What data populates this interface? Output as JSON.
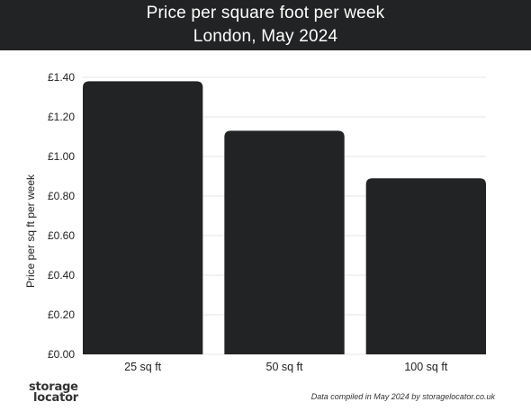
{
  "header": {
    "title": "Price per square foot per week",
    "subtitle": "London, May 2024"
  },
  "chart_data": {
    "type": "bar",
    "title": "Price per square foot per week",
    "subtitle": "London, May 2024",
    "categories": [
      "25 sq ft",
      "50 sq ft",
      "100 sq ft"
    ],
    "values": [
      1.38,
      1.13,
      0.89
    ],
    "xlabel": "",
    "ylabel": "Price per sq ft per week",
    "ylim": [
      0,
      1.4
    ],
    "yticks": [
      0,
      0.2,
      0.4,
      0.6,
      0.8,
      1.0,
      1.2,
      1.4
    ],
    "ytick_labels": [
      "£0.00",
      "£0.20",
      "£0.40",
      "£0.60",
      "£0.80",
      "£1.00",
      "£1.20",
      "£1.40"
    ],
    "grid": true,
    "bar_color": "#222324",
    "grid_color": "#e6e6e6"
  },
  "footer": {
    "logo_line1": "storage",
    "logo_line2": "locator",
    "source": "Data compiled in May 2024 by storagelocator.co.uk"
  }
}
